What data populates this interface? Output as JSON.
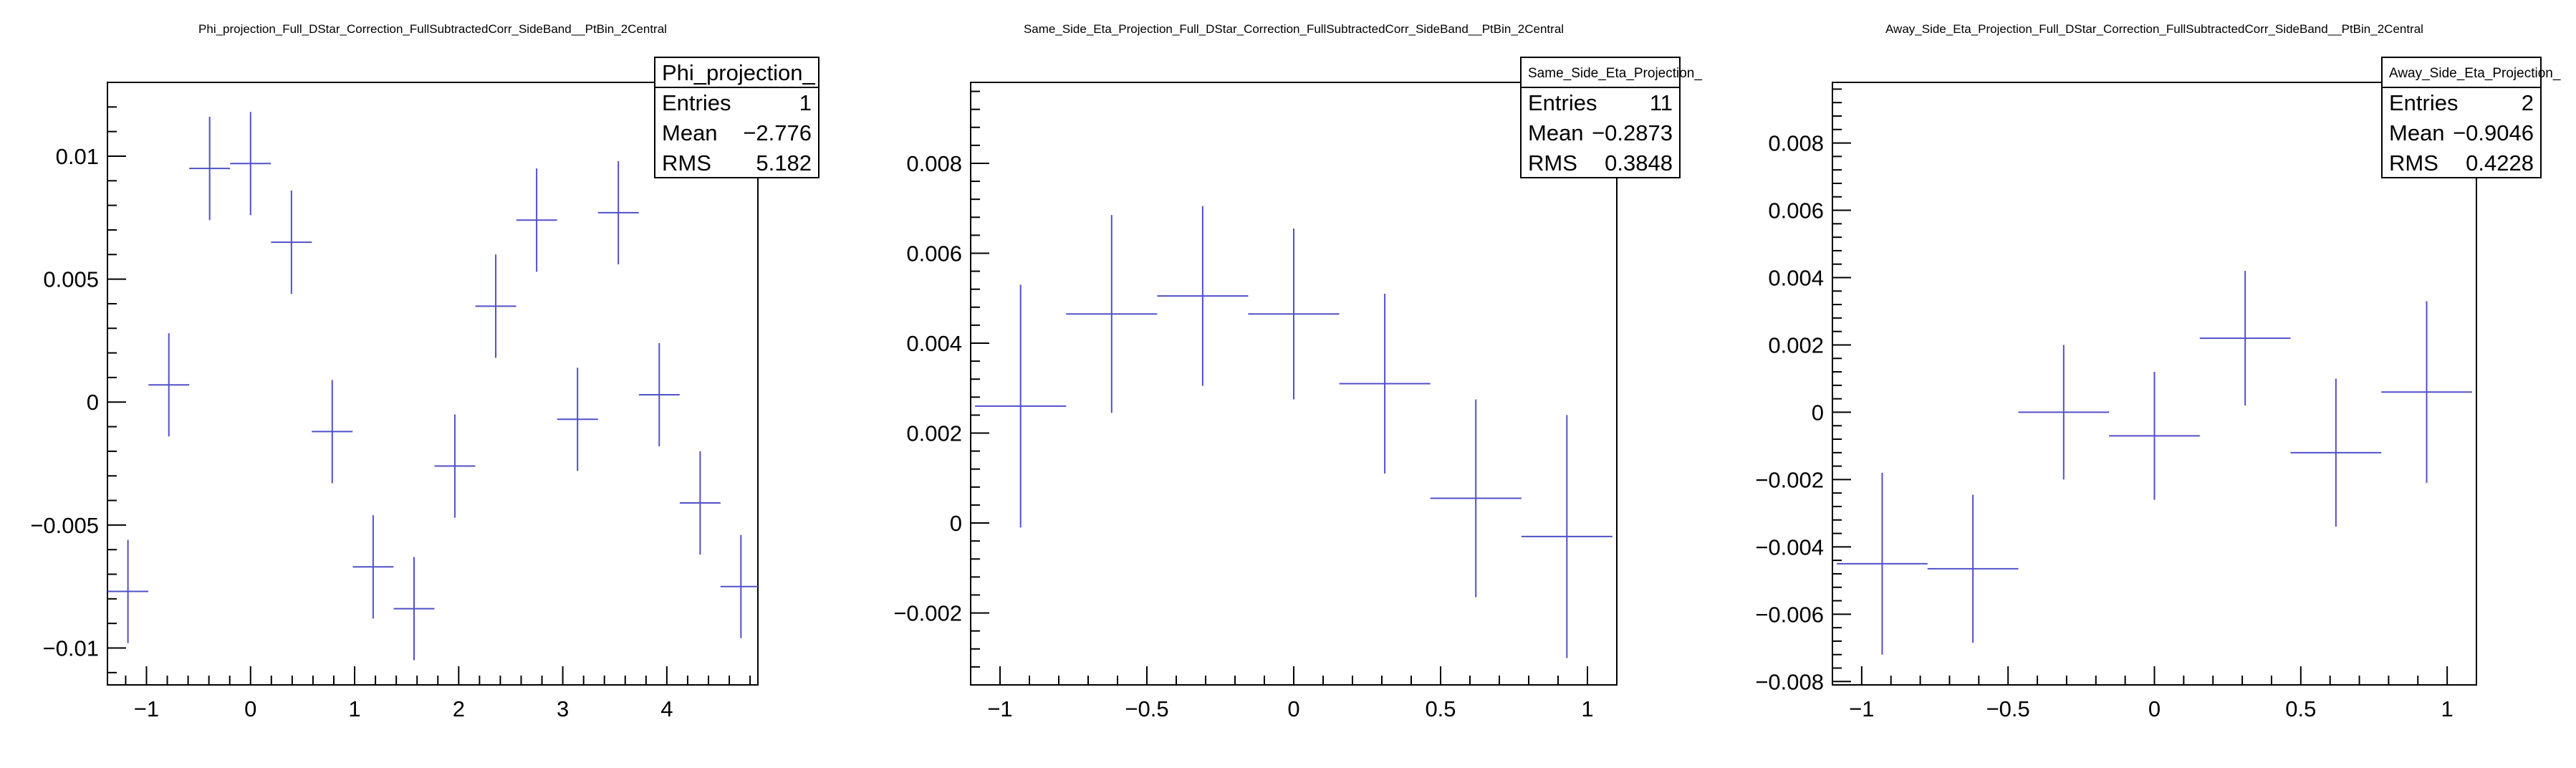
{
  "colors": {
    "marker": "#5050c8",
    "frame": "#000000",
    "background": "#ffffff"
  },
  "chart_data": [
    {
      "type": "scatter",
      "title": "Phi_projection_Full_DStar_Correction_FullSubtractedCorr_SideBand__PtBin_2Central",
      "xlabel": "",
      "ylabel": "",
      "xlim": [
        -1.375,
        4.875
      ],
      "ylim": [
        -0.0115,
        0.013
      ],
      "xticks": [
        -1,
        0,
        1,
        2,
        3,
        4
      ],
      "xtick_labels": [
        "−1",
        "0",
        "1",
        "2",
        "3",
        "4"
      ],
      "yticks": [
        -0.01,
        -0.005,
        0,
        0.005,
        0.01
      ],
      "ytick_labels": [
        "−0.01",
        "−0.005",
        "0",
        "0.005",
        "0.01"
      ],
      "bin_half_width": 0.196,
      "x": [
        -1.178,
        -0.785,
        -0.393,
        0.0,
        0.393,
        0.785,
        1.178,
        1.571,
        1.963,
        2.356,
        2.749,
        3.142,
        3.534,
        3.927,
        4.32,
        4.712
      ],
      "y": [
        -0.0077,
        0.0007,
        0.0095,
        0.0097,
        0.0065,
        -0.0012,
        -0.0067,
        -0.0084,
        -0.0026,
        0.0039,
        0.0074,
        -0.0007,
        0.0077,
        0.0003,
        -0.0041,
        -0.0075
      ],
      "y_err": [
        0.0021,
        0.0021,
        0.0021,
        0.0021,
        0.0021,
        0.0021,
        0.0021,
        0.0021,
        0.0021,
        0.0021,
        0.0021,
        0.0021,
        0.0021,
        0.0021,
        0.0021,
        0.0021
      ],
      "stats": {
        "name": "Phi_projection_",
        "entries_label": "Entries",
        "entries": "1",
        "mean_label": "Mean",
        "mean": "−2.776",
        "rms_label": "RMS",
        "rms": "5.182"
      },
      "grid": false
    },
    {
      "type": "scatter",
      "title": "Same_Side_Eta_Projection_Full_DStar_Correction_FullSubtractedCorr_SideBand__PtBin_2Central",
      "xlabel": "",
      "ylabel": "",
      "xlim": [
        -1.1,
        1.1
      ],
      "ylim": [
        -0.0036,
        0.0098
      ],
      "xticks": [
        -1,
        -0.5,
        0,
        0.5,
        1
      ],
      "xtick_labels": [
        "−1",
        "−0.5",
        "0",
        "0.5",
        "1"
      ],
      "yticks": [
        -0.002,
        0,
        0.002,
        0.004,
        0.006,
        0.008
      ],
      "ytick_labels": [
        "−0.002",
        "0",
        "0.002",
        "0.004",
        "0.006",
        "0.008"
      ],
      "bin_half_width": 0.155,
      "x": [
        -0.93,
        -0.62,
        -0.31,
        0.0,
        0.31,
        0.62,
        0.93
      ],
      "y": [
        0.0026,
        0.00465,
        0.00505,
        0.00465,
        0.0031,
        0.00055,
        -0.0003
      ],
      "y_err": [
        0.0027,
        0.0022,
        0.002,
        0.0019,
        0.002,
        0.0022,
        0.0027
      ],
      "stats": {
        "name": "Same_Side_Eta_Projection_",
        "entries_label": "Entries",
        "entries": "11",
        "mean_label": "Mean",
        "mean": "−0.2873",
        "rms_label": "RMS",
        "rms": "0.3848"
      },
      "grid": false
    },
    {
      "type": "scatter",
      "title": "Away_Side_Eta_Projection_Full_DStar_Correction_FullSubtractedCorr_SideBand__PtBin_2Central",
      "xlabel": "",
      "ylabel": "",
      "xlim": [
        -1.1,
        1.1
      ],
      "ylim": [
        -0.0081,
        0.0098
      ],
      "xticks": [
        -1,
        -0.5,
        0,
        0.5,
        1
      ],
      "xtick_labels": [
        "−1",
        "−0.5",
        "0",
        "0.5",
        "1"
      ],
      "yticks": [
        -0.008,
        -0.006,
        -0.004,
        -0.002,
        0,
        0.002,
        0.004,
        0.006,
        0.008
      ],
      "ytick_labels": [
        "−0.008",
        "−0.006",
        "−0.004",
        "−0.002",
        "0",
        "0.002",
        "0.004",
        "0.006",
        "0.008"
      ],
      "bin_half_width": 0.155,
      "x": [
        -0.93,
        -0.62,
        -0.31,
        0.0,
        0.31,
        0.62,
        0.93
      ],
      "y": [
        -0.0045,
        -0.00465,
        0.0,
        -0.0007,
        0.0022,
        -0.0012,
        0.0006
      ],
      "y_err": [
        0.0027,
        0.0022,
        0.002,
        0.0019,
        0.002,
        0.0022,
        0.0027
      ],
      "stats": {
        "name": "Away_Side_Eta_Projection_",
        "entries_label": "Entries",
        "entries": "2",
        "mean_label": "Mean",
        "mean": "−0.9046",
        "rms_label": "RMS",
        "rms": "0.4228"
      },
      "grid": false
    }
  ]
}
